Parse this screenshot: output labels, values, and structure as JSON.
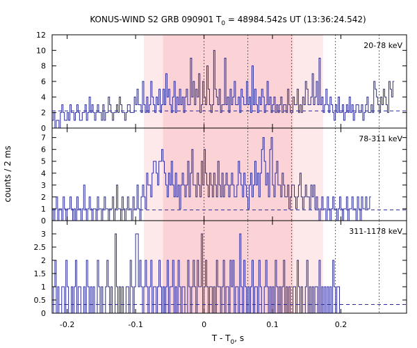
{
  "chart_data": {
    "type": "line",
    "title": "KONUS-WIND S2 GRB 090901 T₀ = 48984.542s UT (13:36:24.542)",
    "title_parts": {
      "prefix": "KONUS-WIND S2 GRB 090901 T",
      "sub": "0",
      "suffix": " = 48984.542s UT (13:36:24.542)"
    },
    "xlabel": "T - T₀, s",
    "xlabel_parts": {
      "prefix": "T - T",
      "sub": "0",
      "suffix": ", s"
    },
    "ylabel": "counts / 2 ms",
    "xlim": [
      -0.222,
      0.296
    ],
    "xticks": [
      -0.2,
      -0.1,
      0,
      0.1,
      0.2
    ],
    "xtick_labels": [
      "-0.2",
      "-0.1",
      "0",
      "0.1",
      "0.2"
    ],
    "bin_width_s": 0.002,
    "shaded_regions": [
      {
        "from": -0.088,
        "to": 0.174,
        "color": "#fde8ea"
      },
      {
        "from": -0.06,
        "to": 0.13,
        "color": "#fbd2d6"
      }
    ],
    "vlines_dotted": [
      0,
      0.064,
      0.128,
      0.192,
      0.256
    ],
    "colors": {
      "histogram": "#2b2b9a",
      "frame": "#000000"
    },
    "panels": [
      {
        "band": "20-78 keV",
        "ylim": [
          0,
          12
        ],
        "yticks": [
          0,
          2,
          4,
          6,
          8,
          10,
          12
        ],
        "background": 2.2,
        "values": [
          1,
          2,
          0,
          1,
          1,
          0,
          2,
          3,
          2,
          1,
          1,
          2,
          1,
          3,
          2,
          2,
          1,
          2,
          3,
          2,
          1,
          1,
          2,
          2,
          3,
          1,
          2,
          4,
          2,
          3,
          2,
          1,
          2,
          3,
          2,
          2,
          1,
          3,
          1,
          2,
          2,
          4,
          3,
          2,
          1,
          2,
          2,
          3,
          2,
          4,
          3,
          2,
          2,
          1,
          2,
          3,
          3,
          2,
          2,
          2,
          4,
          3,
          5,
          3,
          3,
          2,
          6,
          3,
          2,
          4,
          2,
          3,
          6,
          4,
          3,
          2,
          4,
          3,
          5,
          2,
          3,
          5,
          3,
          7,
          4,
          5,
          3,
          2,
          4,
          6,
          2,
          4,
          3,
          5,
          3,
          4,
          2,
          4,
          5,
          3,
          3,
          9,
          4,
          6,
          3,
          5,
          4,
          7,
          2,
          3,
          6,
          4,
          3,
          8,
          5,
          3,
          2,
          3,
          10,
          5,
          4,
          3,
          5,
          2,
          3,
          3,
          9,
          3,
          4,
          2,
          5,
          3,
          4,
          6,
          3,
          3,
          4,
          2,
          5,
          4,
          3,
          3,
          6,
          3,
          4,
          2,
          8,
          3,
          5,
          3,
          2,
          4,
          3,
          5,
          4,
          2,
          3,
          6,
          3,
          4,
          2,
          3,
          4,
          2,
          3,
          2,
          3,
          4,
          2,
          3,
          3,
          2,
          5,
          3,
          2,
          2,
          4,
          3,
          3,
          5,
          2,
          3,
          2,
          4,
          3,
          6,
          5,
          3,
          3,
          4,
          7,
          3,
          4,
          6,
          3,
          9,
          3,
          4,
          2,
          3,
          5,
          3,
          2,
          4,
          3,
          2,
          1,
          3,
          2,
          4,
          2,
          2,
          3,
          1,
          2,
          3,
          2,
          4,
          2,
          3,
          1,
          2,
          3,
          3,
          2,
          2,
          3,
          1,
          2,
          3,
          4,
          2,
          2,
          3,
          2,
          6,
          5,
          4,
          3,
          2,
          4,
          3,
          5,
          4,
          3,
          2,
          6,
          5,
          4,
          6
        ]
      },
      {
        "band": "78-311 keV",
        "ylim": [
          0,
          7.8
        ],
        "yticks": [
          0,
          1,
          2,
          3,
          4,
          5,
          6,
          7
        ],
        "background": 0.9,
        "values": [
          1,
          0,
          1,
          2,
          0,
          1,
          1,
          0,
          2,
          1,
          0,
          1,
          1,
          2,
          1,
          0,
          1,
          0,
          2,
          1,
          1,
          0,
          1,
          3,
          1,
          0,
          1,
          2,
          1,
          0,
          1,
          1,
          0,
          2,
          1,
          1,
          0,
          1,
          2,
          1,
          1,
          0,
          1,
          1,
          2,
          0,
          1,
          3,
          1,
          1,
          0,
          2,
          1,
          0,
          1,
          2,
          1,
          1,
          0,
          2,
          1,
          1,
          3,
          1,
          0,
          2,
          3,
          2,
          1,
          4,
          3,
          3,
          2,
          4,
          5,
          5,
          4,
          3,
          5,
          5,
          6,
          5,
          4,
          3,
          2,
          4,
          3,
          5,
          3,
          2,
          4,
          2,
          3,
          1,
          3,
          4,
          3,
          2,
          3,
          5,
          2,
          4,
          6,
          3,
          3,
          2,
          4,
          3,
          2,
          5,
          3,
          6,
          4,
          3,
          2,
          4,
          3,
          2,
          4,
          3,
          2,
          5,
          3,
          2,
          4,
          2,
          3,
          4,
          3,
          2,
          3,
          4,
          3,
          2,
          2,
          3,
          5,
          4,
          3,
          2,
          4,
          3,
          2,
          1,
          3,
          4,
          2,
          3,
          5,
          3,
          4,
          2,
          4,
          6,
          7,
          5,
          3,
          4,
          2,
          6,
          7,
          3,
          2,
          4,
          5,
          3,
          3,
          2,
          4,
          3,
          2,
          2,
          3,
          1,
          2,
          3,
          3,
          2,
          1,
          2,
          3,
          4,
          2,
          1,
          2,
          3,
          2,
          2,
          1,
          3,
          2,
          3,
          1,
          2,
          1,
          0,
          1,
          2,
          1,
          1,
          0,
          2,
          1,
          0,
          1,
          2,
          1,
          1,
          0,
          1,
          2,
          1,
          0,
          1,
          1,
          2,
          0,
          1,
          1,
          2,
          1,
          1,
          0,
          2,
          1,
          0,
          2,
          1,
          1,
          2,
          1,
          1,
          2
        ]
      },
      {
        "band": "311-1178 keV",
        "ylim": [
          0,
          3.5
        ],
        "yticks": [
          0,
          0.5,
          1,
          1.5,
          2,
          2.5,
          3
        ],
        "background": 0.33,
        "values": [
          0,
          1,
          2,
          0,
          1,
          0,
          0,
          1,
          1,
          0,
          2,
          1,
          0,
          0,
          1,
          0,
          1,
          2,
          0,
          1,
          1,
          0,
          0,
          1,
          0,
          2,
          1,
          0,
          1,
          0,
          1,
          0,
          0,
          2,
          1,
          0,
          1,
          0,
          0,
          1,
          2,
          1,
          0,
          1,
          0,
          0,
          3,
          1,
          0,
          1,
          0,
          1,
          0,
          0,
          1,
          1,
          0,
          2,
          1,
          0,
          1,
          3,
          3,
          1,
          2,
          1,
          0,
          1,
          2,
          1,
          0,
          1,
          2,
          0,
          1,
          1,
          0,
          1,
          2,
          1,
          0,
          1,
          0,
          1,
          2,
          0,
          1,
          1,
          2,
          0,
          1,
          0,
          2,
          1,
          0,
          1,
          1,
          0,
          0,
          2,
          1,
          0,
          1,
          2,
          1,
          0,
          2,
          1,
          1,
          3,
          0,
          1,
          2,
          1,
          0,
          1,
          1,
          0,
          1,
          0,
          2,
          1,
          1,
          0,
          1,
          2,
          0,
          1,
          1,
          0,
          2,
          1,
          2,
          0,
          1,
          1,
          0,
          3,
          1,
          0,
          2,
          1,
          0,
          1,
          0,
          1,
          2,
          0,
          1,
          1,
          0,
          2,
          1,
          0,
          0,
          1,
          2,
          1,
          0,
          1,
          0,
          1,
          0,
          2,
          1,
          0,
          1,
          0,
          1,
          2,
          0,
          1,
          0,
          1,
          0,
          0,
          1,
          1,
          0,
          2,
          1,
          0,
          1,
          0,
          0,
          1,
          2,
          0,
          1,
          0,
          1,
          0,
          1,
          1,
          0,
          2,
          0,
          1,
          0,
          1,
          0,
          1,
          0,
          1,
          0,
          2,
          1,
          0,
          1,
          1,
          0
        ]
      }
    ]
  }
}
